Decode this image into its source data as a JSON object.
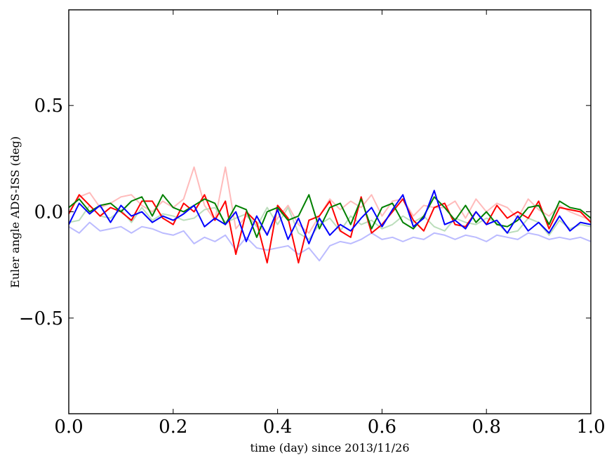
{
  "chart_data": {
    "type": "line",
    "title": "",
    "xlabel": "time (day) since 2013/11/26",
    "ylabel": "Euler angle ADS-ISS (deg)",
    "xlim": [
      0.0,
      1.0
    ],
    "ylim": [
      -0.95,
      0.95
    ],
    "grid": false,
    "legend": "none",
    "xticks": [
      0.0,
      0.2,
      0.4,
      0.6,
      0.8,
      1.0
    ],
    "xtick_labels": [
      "0.0",
      "0.2",
      "0.4",
      "0.6",
      "0.8",
      "1.0"
    ],
    "yticks": [
      -0.5,
      0.0,
      0.5
    ],
    "ytick_labels": [
      "−0.5",
      "0.0",
      "0.5"
    ],
    "x": [
      0.0,
      0.02,
      0.04,
      0.06,
      0.08,
      0.1,
      0.12,
      0.14,
      0.16,
      0.18,
      0.2,
      0.22,
      0.24,
      0.26,
      0.28,
      0.3,
      0.32,
      0.34,
      0.36,
      0.38,
      0.4,
      0.42,
      0.44,
      0.46,
      0.48,
      0.5,
      0.52,
      0.54,
      0.56,
      0.58,
      0.6,
      0.62,
      0.64,
      0.66,
      0.68,
      0.7,
      0.72,
      0.74,
      0.76,
      0.78,
      0.8,
      0.82,
      0.84,
      0.86,
      0.88,
      0.9,
      0.92,
      0.94,
      0.96,
      0.98,
      1.0
    ],
    "series": [
      {
        "color": "#ffbbbb",
        "values": [
          0.0,
          0.07,
          0.09,
          0.02,
          0.04,
          0.07,
          0.08,
          0.03,
          0.0,
          0.05,
          0.02,
          0.06,
          0.21,
          0.03,
          -0.04,
          0.21,
          -0.08,
          -0.02,
          -0.06,
          -0.1,
          -0.03,
          0.03,
          -0.06,
          -0.1,
          -0.02,
          0.06,
          0.01,
          0.05,
          0.02,
          0.08,
          -0.02,
          0.05,
          0.06,
          -0.02,
          0.03,
          0.02,
          0.02,
          0.05,
          -0.03,
          0.06,
          0.0,
          0.04,
          0.02,
          -0.03,
          0.06,
          0.01,
          -0.02,
          0.03,
          0.0,
          -0.02,
          -0.04
        ]
      },
      {
        "color": "#bbddbb",
        "values": [
          -0.05,
          -0.04,
          0.03,
          -0.02,
          -0.03,
          0.01,
          -0.05,
          0.02,
          -0.04,
          -0.01,
          -0.02,
          -0.04,
          -0.03,
          0.01,
          0.02,
          -0.05,
          -0.03,
          -0.01,
          -0.07,
          0.02,
          -0.06,
          0.02,
          -0.1,
          -0.13,
          -0.06,
          -0.03,
          -0.09,
          -0.02,
          -0.06,
          -0.04,
          -0.08,
          -0.06,
          -0.02,
          -0.05,
          -0.02,
          -0.07,
          -0.09,
          -0.03,
          -0.05,
          -0.06,
          -0.03,
          -0.05,
          -0.1,
          -0.09,
          -0.03,
          -0.05,
          -0.11,
          -0.04,
          -0.08,
          -0.06,
          -0.07
        ]
      },
      {
        "color": "#bbbbff",
        "values": [
          -0.07,
          -0.1,
          -0.05,
          -0.09,
          -0.08,
          -0.07,
          -0.1,
          -0.07,
          -0.08,
          -0.1,
          -0.11,
          -0.09,
          -0.15,
          -0.12,
          -0.14,
          -0.11,
          -0.18,
          -0.12,
          -0.17,
          -0.18,
          -0.17,
          -0.16,
          -0.2,
          -0.17,
          -0.23,
          -0.16,
          -0.14,
          -0.15,
          -0.13,
          -0.1,
          -0.13,
          -0.12,
          -0.14,
          -0.12,
          -0.13,
          -0.1,
          -0.11,
          -0.13,
          -0.11,
          -0.12,
          -0.14,
          -0.11,
          -0.12,
          -0.13,
          -0.1,
          -0.11,
          -0.13,
          -0.12,
          -0.13,
          -0.12,
          -0.14
        ]
      },
      {
        "color": "#ff0000",
        "values": [
          -0.01,
          0.08,
          0.03,
          -0.02,
          0.02,
          0.0,
          -0.04,
          0.05,
          0.05,
          -0.03,
          -0.06,
          0.04,
          0.0,
          0.08,
          -0.04,
          0.05,
          -0.2,
          0.0,
          -0.05,
          -0.24,
          0.03,
          -0.03,
          -0.24,
          -0.04,
          -0.02,
          0.05,
          -0.09,
          -0.12,
          0.07,
          -0.1,
          -0.06,
          0.0,
          0.06,
          -0.04,
          -0.09,
          0.02,
          0.04,
          -0.06,
          -0.07,
          0.0,
          -0.06,
          0.03,
          -0.03,
          0.0,
          -0.03,
          0.05,
          -0.08,
          0.02,
          0.01,
          0.0,
          -0.05
        ]
      },
      {
        "color": "#008000",
        "values": [
          0.02,
          0.06,
          0.0,
          0.03,
          0.04,
          0.0,
          0.05,
          0.07,
          -0.02,
          0.08,
          0.02,
          0.0,
          0.03,
          0.06,
          0.04,
          -0.06,
          0.03,
          0.01,
          -0.12,
          0.0,
          0.02,
          -0.04,
          -0.02,
          0.08,
          -0.08,
          0.02,
          0.04,
          -0.06,
          0.06,
          -0.08,
          0.02,
          0.04,
          -0.05,
          -0.08,
          -0.02,
          0.07,
          0.02,
          -0.04,
          0.03,
          -0.05,
          0.0,
          -0.06,
          -0.07,
          -0.04,
          0.02,
          0.03,
          -0.06,
          0.05,
          0.02,
          0.01,
          -0.03
        ]
      },
      {
        "color": "#0000ff",
        "values": [
          -0.06,
          0.04,
          -0.01,
          0.03,
          -0.05,
          0.03,
          -0.02,
          0.0,
          -0.05,
          -0.02,
          -0.04,
          -0.01,
          0.03,
          -0.07,
          -0.03,
          -0.06,
          0.0,
          -0.14,
          -0.02,
          -0.11,
          0.01,
          -0.13,
          -0.03,
          -0.15,
          -0.03,
          -0.11,
          -0.06,
          -0.09,
          -0.03,
          0.02,
          -0.07,
          0.01,
          0.08,
          -0.07,
          -0.03,
          0.1,
          -0.06,
          -0.04,
          -0.08,
          0.0,
          -0.06,
          -0.04,
          -0.1,
          -0.02,
          -0.09,
          -0.05,
          -0.1,
          -0.02,
          -0.09,
          -0.05,
          -0.06
        ]
      }
    ]
  }
}
